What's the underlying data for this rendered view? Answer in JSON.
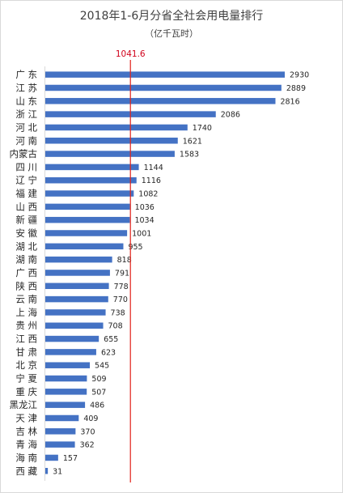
{
  "chart_data": {
    "type": "bar",
    "orientation": "horizontal",
    "title": "2018年1-6月分省全社会用电量排行",
    "subtitle": "（亿千瓦时）",
    "categories": [
      "广 东",
      "江 苏",
      "山 东",
      "浙 江",
      "河 北",
      "河 南",
      "内蒙古",
      "四 川",
      "辽 宁",
      "福 建",
      "山 西",
      "新 疆",
      "安 徽",
      "湖 北",
      "湖 南",
      "广 西",
      "陕 西",
      "云 南",
      "上 海",
      "贵 州",
      "江 西",
      "甘 肃",
      "北 京",
      "宁 夏",
      "重 庆",
      "黑龙江",
      "天 津",
      "吉 林",
      "青 海",
      "海 南",
      "西 藏"
    ],
    "values": [
      2930,
      2889,
      2816,
      2086,
      1740,
      1621,
      1583,
      1144,
      1116,
      1082,
      1036,
      1034,
      1001,
      955,
      818,
      791,
      778,
      770,
      738,
      708,
      655,
      623,
      545,
      509,
      507,
      486,
      409,
      370,
      362,
      157,
      31
    ],
    "reference_line": {
      "value": 1041.6,
      "label": "1041.6",
      "color": "#e2231a"
    },
    "bar_color": "#4472c4",
    "xlim": [
      0,
      3300
    ],
    "grid": false,
    "legend": "none"
  }
}
